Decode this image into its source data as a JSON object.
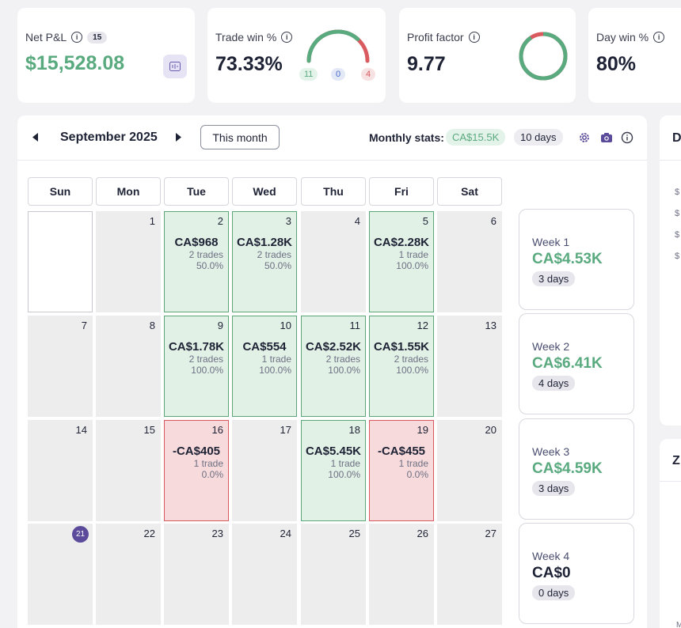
{
  "stats": {
    "net_pnl": {
      "label": "Net P&L",
      "count": "15",
      "value": "$15,528.08",
      "color": "#5aaa7f"
    },
    "trade_win": {
      "label": "Trade win %",
      "value": "73.33%",
      "win": "11",
      "neutral": "0",
      "loss": "4",
      "win_fraction": 0.7333
    },
    "profit_factor": {
      "label": "Profit factor",
      "value": "9.77",
      "profit_fraction": 0.907
    },
    "day_win": {
      "label": "Day win %",
      "value": "80%"
    }
  },
  "calendar": {
    "month": "September 2025",
    "this_month_label": "This month",
    "monthly_label": "Monthly stats:",
    "monthly_pnl": "CA$15.5K",
    "monthly_days": "10 days",
    "weekdays": [
      "Sun",
      "Mon",
      "Tue",
      "Wed",
      "Thu",
      "Fri",
      "Sat"
    ],
    "rows": [
      [
        {
          "num": "",
          "state": "empty"
        },
        {
          "num": "1",
          "state": "none"
        },
        {
          "num": "2",
          "state": "win",
          "pnl": "CA$968",
          "trades": "2 trades",
          "rate": "50.0%"
        },
        {
          "num": "3",
          "state": "win",
          "pnl": "CA$1.28K",
          "trades": "2 trades",
          "rate": "50.0%"
        },
        {
          "num": "4",
          "state": "none"
        },
        {
          "num": "5",
          "state": "win",
          "pnl": "CA$2.28K",
          "trades": "1 trade",
          "rate": "100.0%"
        },
        {
          "num": "6",
          "state": "none"
        }
      ],
      [
        {
          "num": "7",
          "state": "none"
        },
        {
          "num": "8",
          "state": "none"
        },
        {
          "num": "9",
          "state": "win",
          "pnl": "CA$1.78K",
          "trades": "2 trades",
          "rate": "100.0%"
        },
        {
          "num": "10",
          "state": "win",
          "pnl": "CA$554",
          "trades": "1 trade",
          "rate": "100.0%"
        },
        {
          "num": "11",
          "state": "win",
          "pnl": "CA$2.52K",
          "trades": "2 trades",
          "rate": "100.0%"
        },
        {
          "num": "12",
          "state": "win",
          "pnl": "CA$1.55K",
          "trades": "2 trades",
          "rate": "100.0%"
        },
        {
          "num": "13",
          "state": "none"
        }
      ],
      [
        {
          "num": "14",
          "state": "none"
        },
        {
          "num": "15",
          "state": "none"
        },
        {
          "num": "16",
          "state": "loss",
          "pnl": "-CA$405",
          "trades": "1 trade",
          "rate": "0.0%"
        },
        {
          "num": "17",
          "state": "none"
        },
        {
          "num": "18",
          "state": "win",
          "pnl": "CA$5.45K",
          "trades": "1 trade",
          "rate": "100.0%"
        },
        {
          "num": "19",
          "state": "loss",
          "pnl": "-CA$455",
          "trades": "1 trade",
          "rate": "0.0%"
        },
        {
          "num": "20",
          "state": "none"
        }
      ],
      [
        {
          "num": "21",
          "state": "today"
        },
        {
          "num": "22",
          "state": "none"
        },
        {
          "num": "23",
          "state": "none"
        },
        {
          "num": "24",
          "state": "none"
        },
        {
          "num": "25",
          "state": "none"
        },
        {
          "num": "26",
          "state": "none"
        },
        {
          "num": "27",
          "state": "none"
        }
      ]
    ],
    "weeks": [
      {
        "name": "Week 1",
        "pnl": "CA$4.53K",
        "days": "3 days",
        "color": "#5aaa7f"
      },
      {
        "name": "Week 2",
        "pnl": "CA$6.41K",
        "days": "4 days",
        "color": "#5aaa7f"
      },
      {
        "name": "Week 3",
        "pnl": "CA$4.59K",
        "days": "3 days",
        "color": "#5aaa7f"
      },
      {
        "name": "Week 4",
        "pnl": "CA$0",
        "days": "0 days",
        "color": "#1e2235"
      }
    ]
  },
  "side_panel": {
    "top_letter": "D",
    "axis_labels": [
      "$",
      "$",
      "$",
      "$"
    ],
    "bottom_letter": "Z",
    "footer_letter": "M"
  }
}
